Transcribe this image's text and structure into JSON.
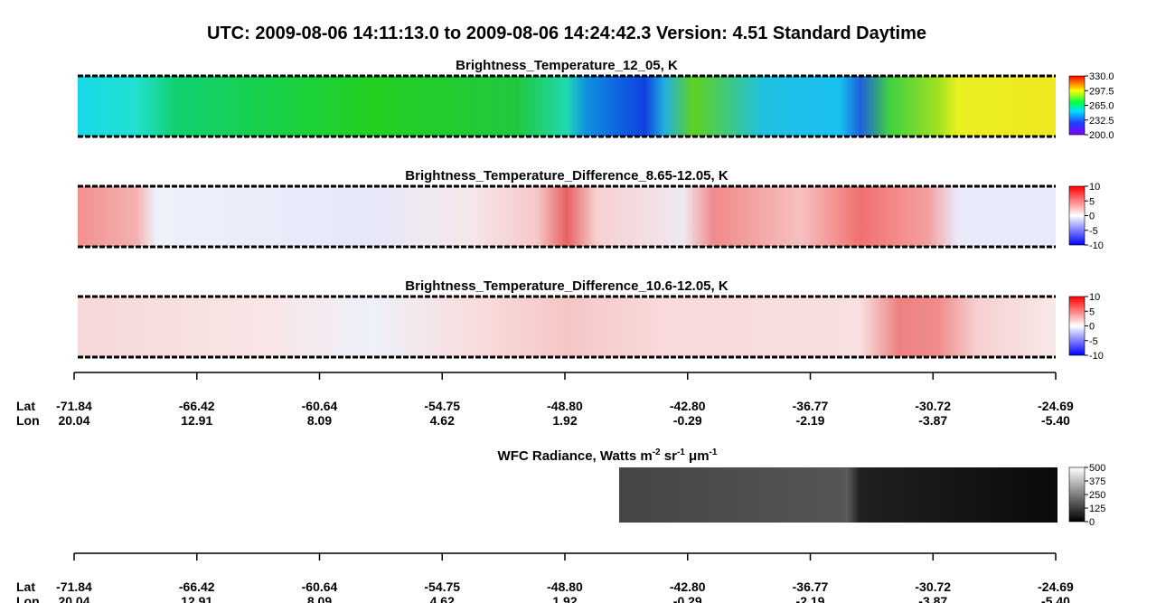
{
  "title": "UTC:  2009-08-06   14:11:13.0  to  2009-08-06   14:24:42.3    Version: 4.51  Standard Daytime",
  "panels": [
    {
      "title": "Brightness_Temperature_12_05, K",
      "colorbar_ticks": [
        "330.0",
        "297.5",
        "265.0",
        "232.5",
        "200.0"
      ]
    },
    {
      "title": "Brightness_Temperature_Difference_8.65-12.05, K",
      "colorbar_ticks": [
        "10",
        "5",
        "0",
        "-5",
        "-10"
      ]
    },
    {
      "title": "Brightness_Temperature_Difference_10.6-12.05, K",
      "colorbar_ticks": [
        "10",
        "5",
        "0",
        "-5",
        "-10"
      ]
    }
  ],
  "wfc_panel": {
    "title": {
      "t1": "WFC Radiance, Watts m",
      "s1": "-2",
      "t2": " sr",
      "s2": "-1",
      "t3": " μm",
      "s3": "-1"
    },
    "colorbar_ticks": [
      "500",
      "375",
      "250",
      "125",
      "0"
    ]
  },
  "axis": {
    "lat_label": "Lat",
    "lon_label": "Lon",
    "lat": [
      "-71.84",
      "-66.42",
      "-60.64",
      "-54.75",
      "-48.80",
      "-42.80",
      "-36.77",
      "-30.72",
      "-24.69"
    ],
    "lon": [
      "20.04",
      "12.91",
      "8.09",
      "4.62",
      "1.92",
      "-0.29",
      "-2.19",
      "-3.87",
      "-5.40"
    ]
  }
}
